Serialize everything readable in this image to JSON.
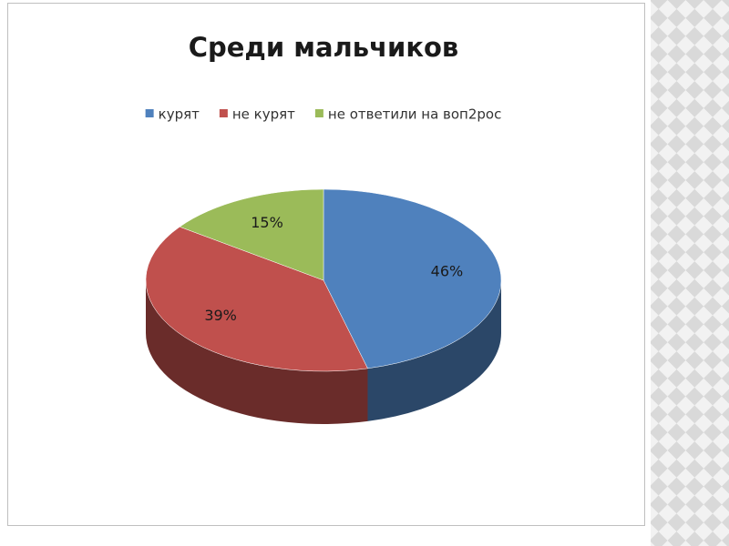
{
  "chart_data": {
    "type": "pie",
    "title": "Среди мальчиков",
    "categories": [
      "курят",
      "не курят",
      "не ответили на воп2рос"
    ],
    "values": [
      46,
      39,
      15
    ],
    "value_labels": [
      "46%",
      "39%",
      "15%"
    ],
    "colors": [
      "#4f81bd",
      "#c0504d",
      "#9bbb59"
    ],
    "legend": "top"
  }
}
